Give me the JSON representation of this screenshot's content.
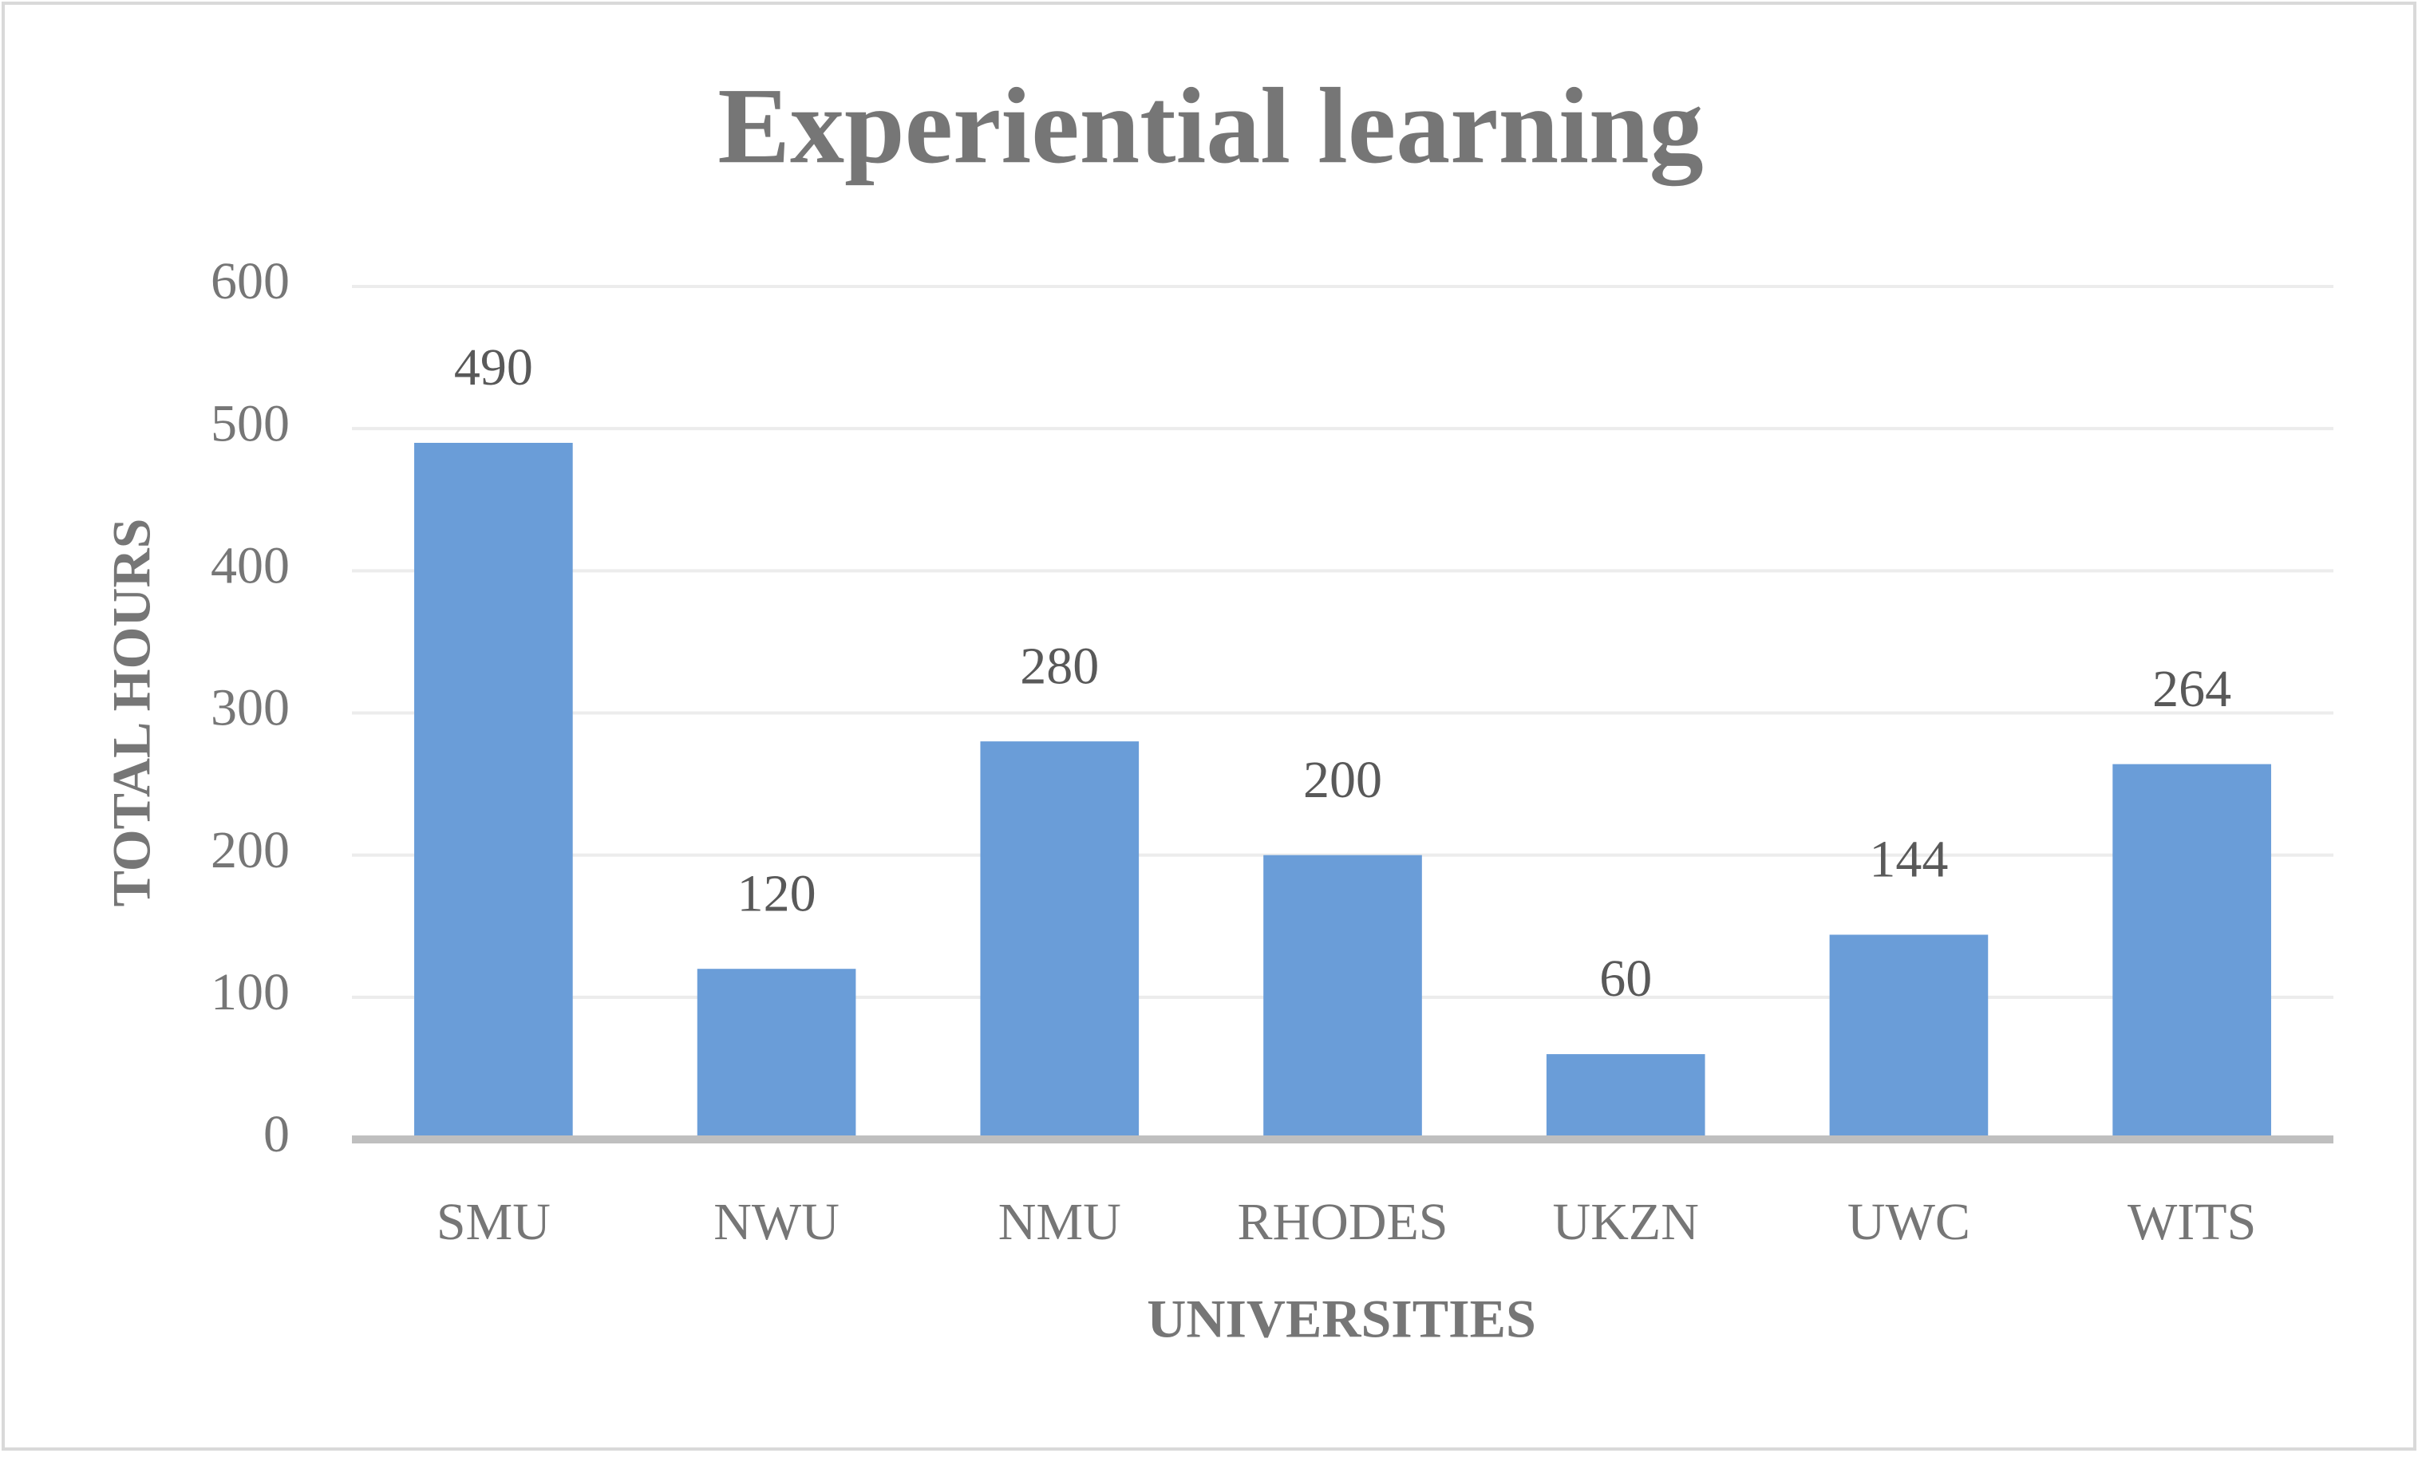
{
  "chart_data": {
    "type": "bar",
    "title": "Experiential learning",
    "x_label": "UNIVERSITIES",
    "y_label": "TOTAL HOURS",
    "categories": [
      "SMU",
      "NWU",
      "NMU",
      "RHODES",
      "UKZN",
      "UWC",
      "WITS"
    ],
    "values": [
      490,
      120,
      280,
      200,
      60,
      144,
      264
    ],
    "color": "#6a9dd8",
    "ylim": [
      0,
      600
    ],
    "yticks": [
      0,
      100,
      200,
      300,
      400,
      500,
      600
    ],
    "grid": true
  }
}
